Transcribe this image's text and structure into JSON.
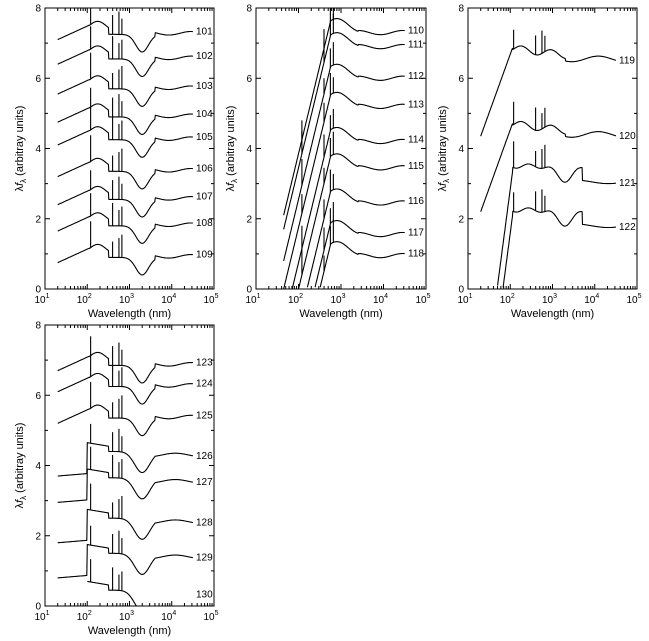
{
  "chart_data": [
    {
      "type": "line",
      "panel": "top-left",
      "xscale": "log",
      "xlim": [
        10,
        100000
      ],
      "ylim": [
        0,
        8
      ],
      "xlabel": "Wavelength (nm)",
      "ylabel": "λfλ (arbitray units)",
      "ylabel_parts": {
        "lambda": "λ",
        "f": "f",
        "sub": "λ",
        "rest": " (arbitray units)"
      },
      "xtick_labels": [
        {
          "base": "10",
          "exp": "1"
        },
        {
          "base": "10",
          "exp": "2"
        },
        {
          "base": "10",
          "exp": "3"
        },
        {
          "base": "10",
          "exp": "4"
        },
        {
          "base": "10",
          "exp": "5"
        }
      ],
      "ytick_labels": [
        "0",
        "2",
        "4",
        "6",
        "8"
      ],
      "series": [
        {
          "name": "101",
          "offset": 7.4,
          "style": "stellar"
        },
        {
          "name": "102",
          "offset": 6.7,
          "style": "stellar"
        },
        {
          "name": "103",
          "offset": 5.85,
          "style": "stellar"
        },
        {
          "name": "104",
          "offset": 5.05,
          "style": "stellar"
        },
        {
          "name": "105",
          "offset": 4.4,
          "style": "stellar"
        },
        {
          "name": "106",
          "offset": 3.5,
          "style": "stellar"
        },
        {
          "name": "107",
          "offset": 2.7,
          "style": "stellar"
        },
        {
          "name": "108",
          "offset": 1.95,
          "style": "stellar"
        },
        {
          "name": "109",
          "offset": 1.05,
          "style": "stellar"
        }
      ]
    },
    {
      "type": "line",
      "panel": "top-middle",
      "xscale": "log",
      "xlim": [
        10,
        100000
      ],
      "ylim": [
        0,
        8
      ],
      "xlabel": "Wavelength (nm)",
      "ylabel": "λfλ (arbitray units)",
      "ylabel_parts": {
        "lambda": "λ",
        "f": "f",
        "sub": "λ",
        "rest": " (arbitray units)"
      },
      "xtick_labels": [
        {
          "base": "10",
          "exp": "1"
        },
        {
          "base": "10",
          "exp": "2"
        },
        {
          "base": "10",
          "exp": "3"
        },
        {
          "base": "10",
          "exp": "4"
        },
        {
          "base": "10",
          "exp": "5"
        }
      ],
      "ytick_labels": [
        "0",
        "2",
        "4",
        "6",
        "8"
      ],
      "series": [
        {
          "name": "110",
          "offset": 7.6,
          "style": "rise"
        },
        {
          "name": "111",
          "offset": 7.2,
          "style": "rise"
        },
        {
          "name": "112",
          "offset": 6.3,
          "style": "rise"
        },
        {
          "name": "113",
          "offset": 5.5,
          "style": "rise"
        },
        {
          "name": "114",
          "offset": 4.5,
          "style": "rise"
        },
        {
          "name": "115",
          "offset": 3.75,
          "style": "rise"
        },
        {
          "name": "116",
          "offset": 2.75,
          "style": "rise"
        },
        {
          "name": "117",
          "offset": 1.85,
          "style": "rise"
        },
        {
          "name": "118",
          "offset": 1.25,
          "style": "rise"
        }
      ]
    },
    {
      "type": "line",
      "panel": "top-right",
      "xscale": "log",
      "xlim": [
        10,
        100000
      ],
      "ylim": [
        0,
        8
      ],
      "xlabel": "Wavelength (nm)",
      "ylabel": "λfλ (arbitray units)",
      "ylabel_parts": {
        "lambda": "λ",
        "f": "f",
        "sub": "λ",
        "rest": " (arbitray units)"
      },
      "xtick_labels": [
        {
          "base": "10",
          "exp": "1"
        },
        {
          "base": "10",
          "exp": "2"
        },
        {
          "base": "10",
          "exp": "3"
        },
        {
          "base": "10",
          "exp": "4"
        },
        {
          "base": "10",
          "exp": "5"
        }
      ],
      "ytick_labels": [
        "0",
        "2",
        "4",
        "6",
        "8"
      ],
      "series": [
        {
          "name": "119",
          "offset": 6.85,
          "style": "ir"
        },
        {
          "name": "120",
          "offset": 4.7,
          "style": "ir"
        },
        {
          "name": "121",
          "offset": 3.3,
          "style": "cut"
        },
        {
          "name": "122",
          "offset": 2.05,
          "style": "cut"
        }
      ]
    },
    {
      "type": "line",
      "panel": "bottom-left",
      "xscale": "log",
      "xlim": [
        10,
        100000
      ],
      "ylim": [
        0,
        8
      ],
      "xlabel": "Wavelength (nm)",
      "ylabel": "λfλ (arbitray units)",
      "ylabel_parts": {
        "lambda": "λ",
        "f": "f",
        "sub": "λ",
        "rest": " (arbitray units)"
      },
      "xtick_labels": [
        {
          "base": "10",
          "exp": "1"
        },
        {
          "base": "10",
          "exp": "2"
        },
        {
          "base": "10",
          "exp": "3"
        },
        {
          "base": "10",
          "exp": "4"
        },
        {
          "base": "10",
          "exp": "5"
        }
      ],
      "ytick_labels": [
        "0",
        "2",
        "4",
        "6",
        "8"
      ],
      "series": [
        {
          "name": "123",
          "offset": 7.0,
          "style": "stellar"
        },
        {
          "name": "124",
          "offset": 6.4,
          "style": "stellar"
        },
        {
          "name": "125",
          "offset": 5.5,
          "style": "stellar"
        },
        {
          "name": "126",
          "offset": 4.5,
          "style": "jump"
        },
        {
          "name": "127",
          "offset": 3.75,
          "style": "jump"
        },
        {
          "name": "128",
          "offset": 2.6,
          "style": "jump"
        },
        {
          "name": "129",
          "offset": 1.6,
          "style": "jump"
        },
        {
          "name": "130",
          "offset": 0.55,
          "style": "jump"
        }
      ]
    }
  ]
}
